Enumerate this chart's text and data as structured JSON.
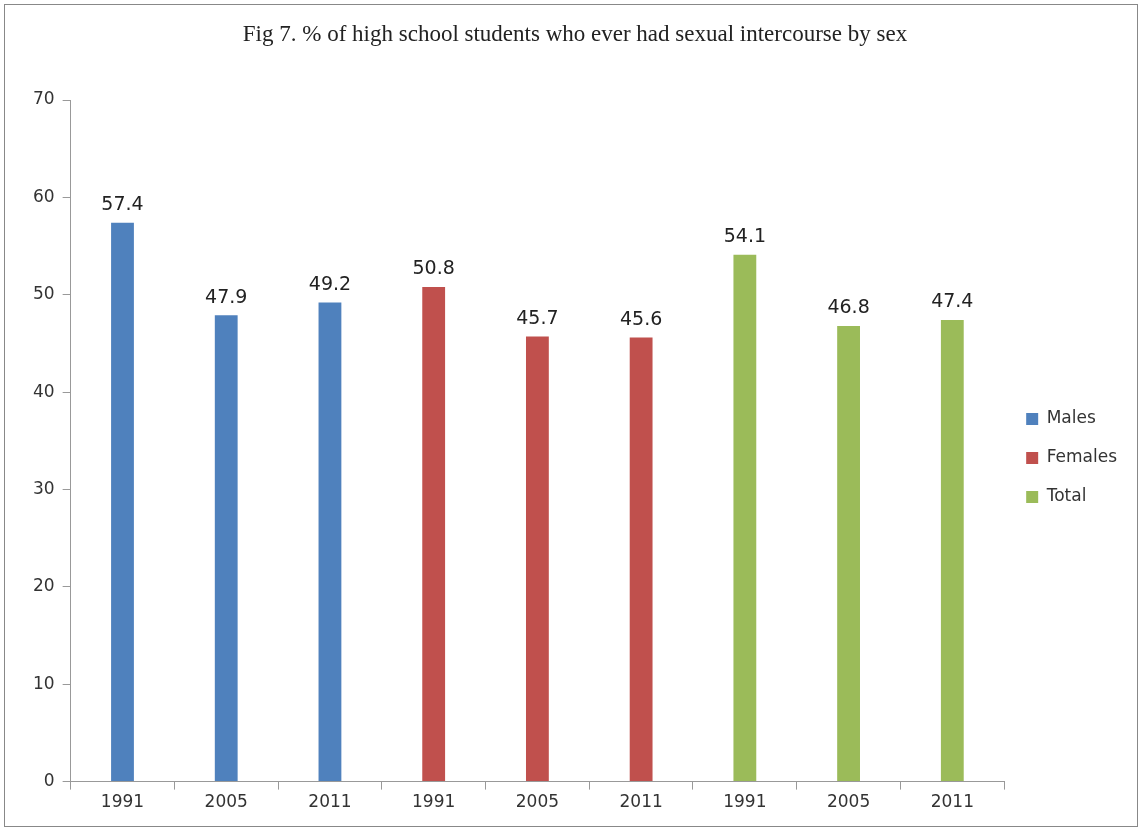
{
  "chart_data": {
    "type": "bar",
    "title": "Fig 7. % of high school students who ever had sexual intercourse by sex",
    "categories": [
      "1991",
      "2005",
      "2011",
      "1991",
      "2005",
      "2011",
      "1991",
      "2005",
      "2011"
    ],
    "series": [
      {
        "name": "Males",
        "color": "#4f81bd",
        "values": [
          57.4,
          47.9,
          49.2,
          null,
          null,
          null,
          null,
          null,
          null
        ]
      },
      {
        "name": "Females",
        "color": "#c0504d",
        "values": [
          null,
          null,
          null,
          50.8,
          45.7,
          45.6,
          null,
          null,
          null
        ]
      },
      {
        "name": "Total",
        "color": "#9bbb59",
        "values": [
          null,
          null,
          null,
          null,
          null,
          null,
          54.1,
          46.8,
          47.4
        ]
      }
    ],
    "ylim": [
      0,
      70
    ],
    "yticks": [
      0,
      10,
      20,
      30,
      40,
      50,
      60,
      70
    ],
    "grid": false,
    "legend": "right",
    "data_labels": true
  }
}
